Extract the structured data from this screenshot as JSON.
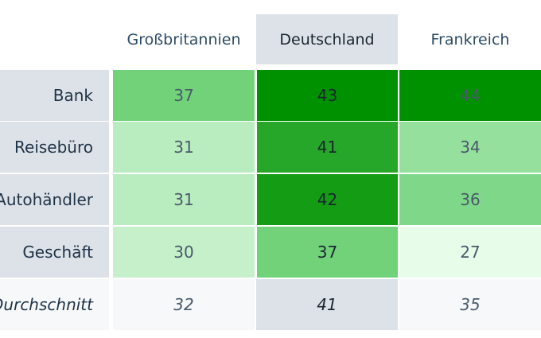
{
  "chart_data": {
    "type": "heatmap",
    "columns": [
      "Großbritannien",
      "Deutschland",
      "Frankreich"
    ],
    "rows": [
      "Bank",
      "Reisebüro",
      "Autohändler",
      "Geschäft"
    ],
    "values": [
      [
        37,
        43,
        44
      ],
      [
        31,
        41,
        34
      ],
      [
        31,
        42,
        36
      ],
      [
        30,
        37,
        27
      ]
    ],
    "summary_row": {
      "label": "Durchschnitt",
      "values": [
        32,
        41,
        35
      ]
    },
    "highlighted_column": "Deutschland"
  },
  "colors": {
    "highlight_header": "#dde2e8",
    "average_row": "#f6f8fa",
    "row_label_bg": "#dde2e8"
  }
}
